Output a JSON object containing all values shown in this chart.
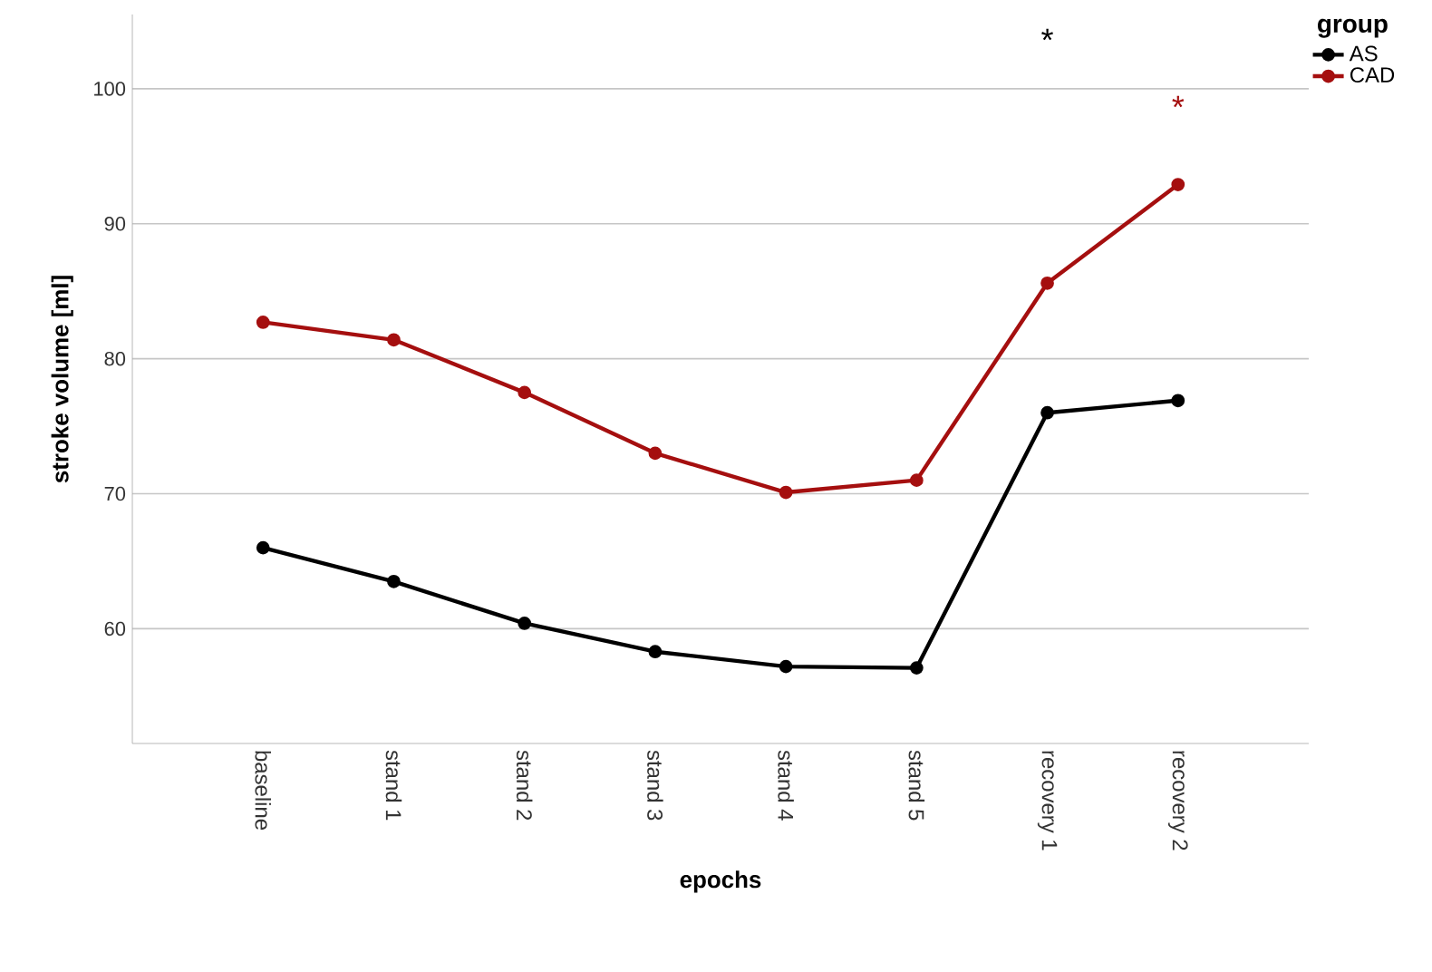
{
  "chart_data": {
    "type": "line",
    "xlabel": "epochs",
    "ylabel": "stroke volume [ml]",
    "legend_title": "group",
    "categories": [
      "baseline",
      "stand 1",
      "stand 2",
      "stand 3",
      "stand 4",
      "stand 5",
      "recovery 1",
      "recovery 2"
    ],
    "series": [
      {
        "name": "AS",
        "color": "#000000",
        "values": [
          66.0,
          63.5,
          60.4,
          58.3,
          57.2,
          57.1,
          76.0,
          76.9
        ]
      },
      {
        "name": "CAD",
        "color": "#a50f0f",
        "values": [
          82.7,
          81.4,
          77.5,
          73.0,
          70.1,
          71.0,
          85.6,
          92.9
        ]
      }
    ],
    "annotations": [
      "*",
      "*"
    ],
    "ylim": [
      51.5,
      105.5
    ],
    "yticks": [
      60,
      70,
      80,
      90,
      100
    ],
    "grid": "y",
    "legend": "top right",
    "marker": "circle",
    "line_style": "solid"
  }
}
